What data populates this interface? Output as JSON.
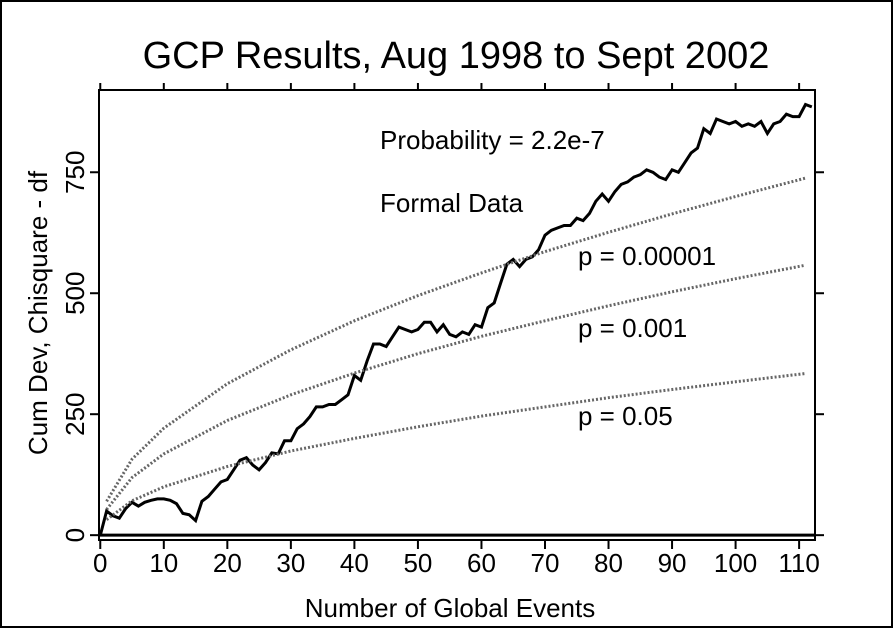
{
  "chart_data": {
    "type": "line",
    "title": "GCP Results, Aug 1998 to Sept 2002",
    "xlabel": "Number of Global Events",
    "ylabel": "Cum Dev, Chisquare - df",
    "annotations": [
      "Probability = 2.2e-7"
    ],
    "xlim": [
      -0.2,
      112.5
    ],
    "ylim": [
      -10,
      920
    ],
    "xticks": [
      0,
      10,
      20,
      30,
      40,
      50,
      60,
      70,
      80,
      90,
      100,
      110
    ],
    "yticks": [
      0,
      250,
      500,
      750
    ],
    "hline": 0,
    "series": [
      {
        "name": "Formal Data",
        "color": "#000000",
        "style": "solid",
        "x": [
          0,
          1,
          2,
          3,
          4,
          5,
          6,
          7,
          8,
          9,
          10,
          11,
          12,
          13,
          14,
          15,
          16,
          17,
          18,
          19,
          20,
          21,
          22,
          23,
          24,
          25,
          26,
          27,
          28,
          29,
          30,
          31,
          32,
          33,
          34,
          35,
          36,
          37,
          38,
          39,
          40,
          41,
          42,
          43,
          44,
          45,
          46,
          47,
          48,
          49,
          50,
          51,
          52,
          53,
          54,
          55,
          56,
          57,
          58,
          59,
          60,
          61,
          62,
          63,
          64,
          65,
          66,
          67,
          68,
          69,
          70,
          71,
          72,
          73,
          74,
          75,
          76,
          77,
          78,
          79,
          80,
          81,
          82,
          83,
          84,
          85,
          86,
          87,
          88,
          89,
          90,
          91,
          92,
          93,
          94,
          95,
          96,
          97,
          98,
          99,
          100,
          101,
          102,
          103,
          104,
          105,
          106,
          107,
          108,
          109,
          110,
          111,
          112
        ],
        "values": [
          0,
          50,
          40,
          35,
          55,
          68,
          60,
          68,
          72,
          75,
          75,
          72,
          65,
          45,
          42,
          30,
          70,
          80,
          95,
          110,
          115,
          135,
          155,
          160,
          145,
          135,
          150,
          170,
          168,
          195,
          195,
          220,
          230,
          245,
          265,
          265,
          270,
          270,
          280,
          290,
          330,
          320,
          360,
          395,
          395,
          390,
          410,
          430,
          425,
          420,
          425,
          440,
          440,
          420,
          435,
          415,
          410,
          420,
          415,
          435,
          430,
          470,
          480,
          520,
          560,
          570,
          555,
          570,
          575,
          590,
          620,
          630,
          635,
          640,
          640,
          655,
          650,
          665,
          690,
          705,
          690,
          710,
          725,
          730,
          740,
          745,
          755,
          750,
          740,
          735,
          755,
          750,
          770,
          790,
          800,
          840,
          830,
          860,
          855,
          850,
          855,
          845,
          850,
          845,
          855,
          830,
          850,
          855,
          870,
          865,
          865,
          890,
          885
        ]
      },
      {
        "name": "p = 0.00001",
        "color": "#666666",
        "style": "dotted",
        "x": [
          1,
          5,
          10,
          20,
          30,
          40,
          50,
          60,
          70,
          80,
          90,
          100,
          111
        ],
        "values": [
          70,
          157,
          221,
          313,
          383,
          443,
          495,
          542,
          586,
          626,
          664,
          700,
          738
        ]
      },
      {
        "name": "p = 0.001",
        "color": "#666666",
        "style": "dotted",
        "x": [
          1,
          5,
          10,
          20,
          30,
          40,
          50,
          60,
          70,
          80,
          90,
          100,
          111
        ],
        "values": [
          53,
          119,
          168,
          237,
          290,
          335,
          375,
          411,
          443,
          474,
          503,
          530,
          558
        ]
      },
      {
        "name": "p = 0.05",
        "color": "#666666",
        "style": "dotted",
        "x": [
          1,
          5,
          10,
          20,
          30,
          40,
          50,
          60,
          70,
          80,
          90,
          100,
          111
        ],
        "values": [
          32,
          71,
          100,
          142,
          174,
          200,
          224,
          246,
          265,
          284,
          301,
          317,
          334
        ]
      }
    ]
  }
}
